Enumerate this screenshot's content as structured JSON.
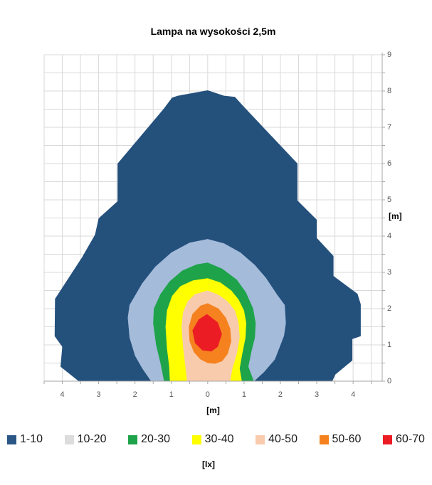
{
  "title": "Lampa na wysokości 2,5m",
  "axes": {
    "x_title": "[m]",
    "y_title": "[m]",
    "x_tick_labels": [
      "4",
      "3",
      "2",
      "1",
      "0",
      "1",
      "2",
      "3",
      "4"
    ],
    "x_tick_values": [
      -4,
      -3,
      -2,
      -1,
      0,
      1,
      2,
      3,
      4
    ],
    "y_tick_labels": [
      "0",
      "1",
      "2",
      "3",
      "4",
      "5",
      "6",
      "7",
      "8",
      "9"
    ],
    "y_tick_values": [
      0,
      1,
      2,
      3,
      4,
      5,
      6,
      7,
      8,
      9
    ]
  },
  "legend": {
    "unit_label": "[lx]",
    "items": [
      {
        "label": "1-10",
        "color": "#2A5786"
      },
      {
        "label": "10-20",
        "color": "#DCDCDC"
      },
      {
        "label": "20-30",
        "color": "#1EA34A"
      },
      {
        "label": "30-40",
        "color": "#FFFF00"
      },
      {
        "label": "40-50",
        "color": "#F8CBAD"
      },
      {
        "label": "50-60",
        "color": "#F5821E"
      },
      {
        "label": "60-70",
        "color": "#EC1C24"
      }
    ]
  },
  "colors": {
    "grid": "#D9D9D9",
    "axis": "#A6A6A6",
    "tick_label": "#595959"
  },
  "chart_data": {
    "type": "heatmap",
    "subtype": "filled-contour-surface",
    "title": "Lampa na wysokości 2,5m",
    "xlabel": "[m]",
    "ylabel": "[m]",
    "unit": "lx",
    "x_range": [
      -4.5,
      4.8
    ],
    "y_range": [
      0,
      9
    ],
    "grid": true,
    "grid_step": 0.5,
    "legend_position": "bottom",
    "levels_lx": [
      "1-10",
      "10-20",
      "20-30",
      "30-40",
      "40-50",
      "50-60",
      "60-70"
    ],
    "regions": [
      {
        "label": "1-10",
        "value_range": [
          1,
          10
        ],
        "color": "#24507C",
        "points": [
          [
            0.0,
            8.02
          ],
          [
            0.45,
            7.87
          ],
          [
            0.75,
            7.84
          ],
          [
            1.0,
            7.56
          ],
          [
            2.47,
            6.0
          ],
          [
            2.47,
            4.98
          ],
          [
            3.0,
            4.45
          ],
          [
            3.0,
            3.95
          ],
          [
            3.46,
            3.45
          ],
          [
            3.46,
            2.9
          ],
          [
            4.12,
            2.41
          ],
          [
            4.21,
            2.12
          ],
          [
            4.21,
            1.24
          ],
          [
            3.98,
            1.16
          ],
          [
            3.98,
            0.57
          ],
          [
            3.51,
            0.18
          ],
          [
            3.43,
            0.0
          ],
          [
            -3.55,
            0.0
          ],
          [
            -4.05,
            0.4
          ],
          [
            -4.0,
            0.95
          ],
          [
            -4.21,
            1.24
          ],
          [
            -4.2,
            2.27
          ],
          [
            -3.46,
            3.41
          ],
          [
            -3.1,
            4.04
          ],
          [
            -3.0,
            4.49
          ],
          [
            -2.48,
            4.96
          ],
          [
            -2.48,
            6.0
          ],
          [
            -1.21,
            7.51
          ],
          [
            -0.98,
            7.82
          ],
          [
            -0.82,
            7.87
          ]
        ]
      },
      {
        "label": "10-20",
        "value_range": [
          10,
          20
        ],
        "color": "#A4BBDA",
        "points": [
          [
            0.0,
            3.92
          ],
          [
            0.45,
            3.8
          ],
          [
            0.9,
            3.55
          ],
          [
            1.3,
            3.2
          ],
          [
            1.6,
            2.85
          ],
          [
            1.9,
            2.4
          ],
          [
            2.12,
            2.1
          ],
          [
            2.15,
            1.6
          ],
          [
            2.1,
            1.25
          ],
          [
            1.85,
            0.6
          ],
          [
            1.55,
            0.25
          ],
          [
            1.28,
            0.0
          ],
          [
            -1.56,
            0.0
          ],
          [
            -1.8,
            0.35
          ],
          [
            -2.0,
            0.7
          ],
          [
            -2.15,
            1.2
          ],
          [
            -2.2,
            1.75
          ],
          [
            -2.15,
            2.1
          ],
          [
            -1.8,
            2.7
          ],
          [
            -1.45,
            3.15
          ],
          [
            -1.0,
            3.55
          ],
          [
            -0.5,
            3.82
          ]
        ]
      },
      {
        "label": "20-30",
        "value_range": [
          20,
          30
        ],
        "color": "#1EA34A",
        "points": [
          [
            0.0,
            3.27
          ],
          [
            0.4,
            3.1
          ],
          [
            0.8,
            2.8
          ],
          [
            1.05,
            2.45
          ],
          [
            1.25,
            2.0
          ],
          [
            1.32,
            1.6
          ],
          [
            1.3,
            1.2
          ],
          [
            1.2,
            0.8
          ],
          [
            1.12,
            0.4
          ],
          [
            1.27,
            0.0
          ],
          [
            -1.2,
            0.0
          ],
          [
            -1.3,
            0.5
          ],
          [
            -1.42,
            1.0
          ],
          [
            -1.5,
            1.6
          ],
          [
            -1.48,
            2.0
          ],
          [
            -1.3,
            2.4
          ],
          [
            -1.05,
            2.75
          ],
          [
            -0.7,
            3.05
          ],
          [
            -0.3,
            3.22
          ]
        ]
      },
      {
        "label": "30-40",
        "value_range": [
          30,
          40
        ],
        "color": "#FFFF00",
        "points": [
          [
            0.0,
            2.84
          ],
          [
            0.35,
            2.72
          ],
          [
            0.65,
            2.5
          ],
          [
            0.85,
            2.25
          ],
          [
            1.0,
            1.95
          ],
          [
            1.06,
            1.6
          ],
          [
            1.04,
            1.2
          ],
          [
            0.95,
            0.75
          ],
          [
            0.88,
            0.35
          ],
          [
            0.94,
            0.0
          ],
          [
            -1.04,
            0.0
          ],
          [
            -1.06,
            0.4
          ],
          [
            -1.12,
            0.9
          ],
          [
            -1.16,
            1.5
          ],
          [
            -1.12,
            1.95
          ],
          [
            -0.98,
            2.35
          ],
          [
            -0.75,
            2.62
          ],
          [
            -0.4,
            2.78
          ]
        ]
      },
      {
        "label": "40-50",
        "value_range": [
          40,
          50
        ],
        "color": "#F8CBAD",
        "points": [
          [
            0.0,
            2.5
          ],
          [
            0.3,
            2.38
          ],
          [
            0.55,
            2.2
          ],
          [
            0.75,
            1.95
          ],
          [
            0.85,
            1.6
          ],
          [
            0.88,
            1.2
          ],
          [
            0.8,
            0.75
          ],
          [
            0.68,
            0.35
          ],
          [
            0.62,
            0.0
          ],
          [
            -0.57,
            0.0
          ],
          [
            -0.62,
            0.45
          ],
          [
            -0.68,
            0.95
          ],
          [
            -0.72,
            1.5
          ],
          [
            -0.68,
            1.9
          ],
          [
            -0.55,
            2.2
          ],
          [
            -0.35,
            2.4
          ]
        ]
      },
      {
        "label": "50-60",
        "value_range": [
          50,
          60
        ],
        "color": "#F5821E",
        "points": [
          [
            0.0,
            2.15
          ],
          [
            0.3,
            2.0
          ],
          [
            0.5,
            1.75
          ],
          [
            0.62,
            1.45
          ],
          [
            0.65,
            1.1
          ],
          [
            0.55,
            0.75
          ],
          [
            0.4,
            0.55
          ],
          [
            0.2,
            0.48
          ],
          [
            0.0,
            0.5
          ],
          [
            -0.2,
            0.6
          ],
          [
            -0.38,
            0.8
          ],
          [
            -0.5,
            1.1
          ],
          [
            -0.52,
            1.5
          ],
          [
            -0.42,
            1.85
          ],
          [
            -0.2,
            2.08
          ]
        ]
      },
      {
        "label": "60-70",
        "value_range": [
          60,
          70
        ],
        "color": "#EC1C24",
        "points": [
          [
            -0.02,
            1.85
          ],
          [
            0.28,
            1.62
          ],
          [
            0.39,
            1.3
          ],
          [
            0.28,
            0.95
          ],
          [
            0.1,
            0.82
          ],
          [
            -0.15,
            0.85
          ],
          [
            -0.35,
            1.05
          ],
          [
            -0.42,
            1.4
          ],
          [
            -0.25,
            1.7
          ]
        ]
      }
    ]
  }
}
